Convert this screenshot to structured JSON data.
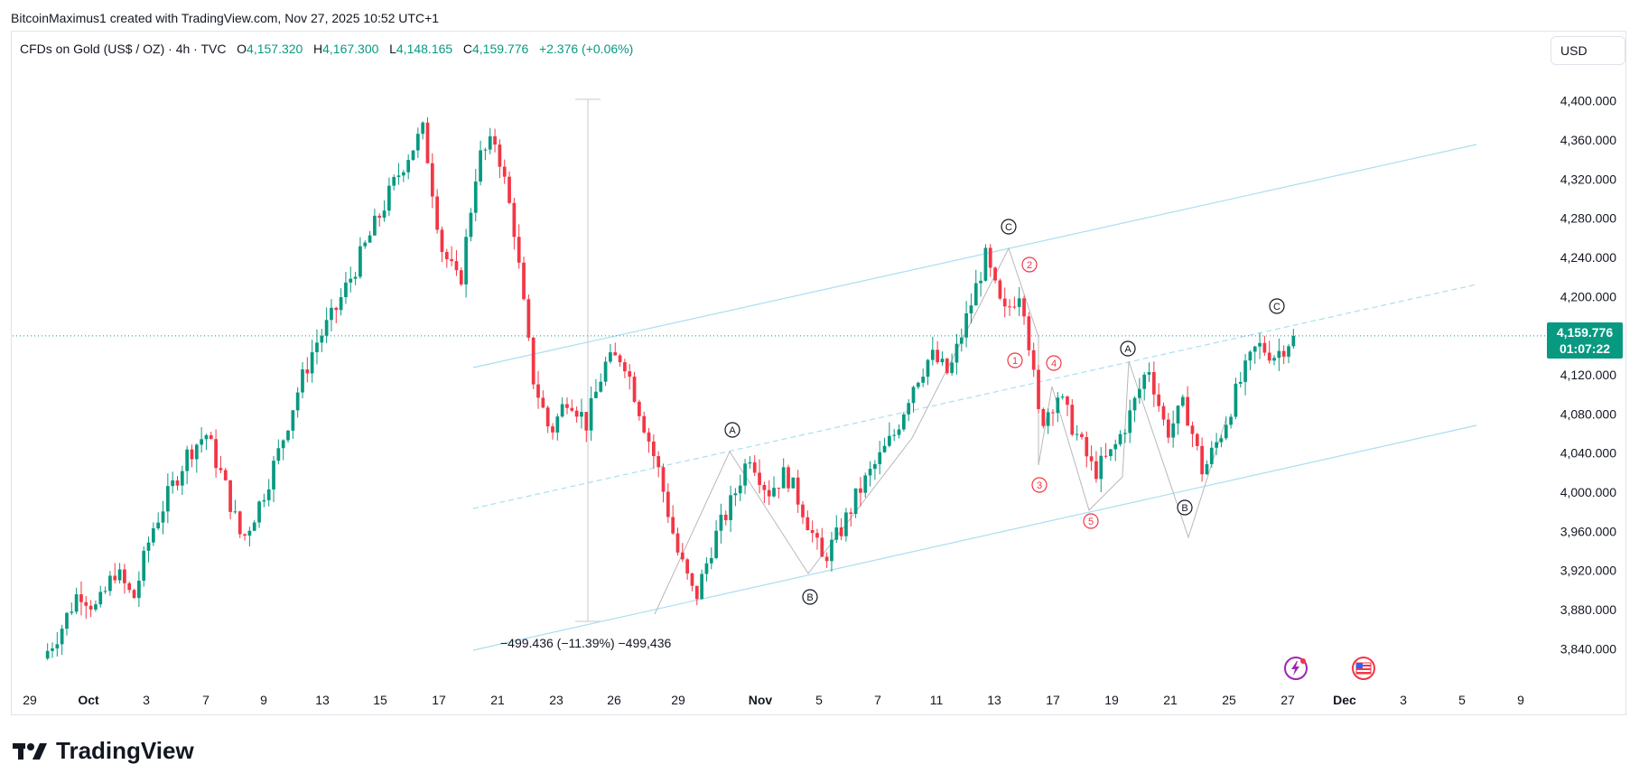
{
  "credit": "BitcoinMaximus1 created with TradingView.com, Nov 27, 2025 10:52 UTC+1",
  "legend": {
    "symbol": "CFDs on Gold (US$ / OZ) · 4h · TVC",
    "o_label": "O",
    "o_value": "4,157.320",
    "h_label": "H",
    "h_value": "4,167.300",
    "l_label": "L",
    "l_value": "4,148.165",
    "c_label": "C",
    "c_value": "4,159.776",
    "change": "+2.376 (+0.06%)"
  },
  "currency": "USD",
  "last_price": "4,159.776",
  "countdown": "01:07:22",
  "measure_text": "−499.436 (−11.39%) −499,436",
  "footer_brand": "TradingView",
  "colors": {
    "up": "#089981",
    "down": "#f23645",
    "channel": "#a8dff0",
    "wave": "#b8b8b8"
  },
  "icons": [
    "lightning-icon",
    "us-flag-icon"
  ],
  "chart_data": {
    "type": "candlestick",
    "timeframe": "4h",
    "y_ticks": [
      "4,400.000",
      "4,360.000",
      "4,320.000",
      "4,280.000",
      "4,240.000",
      "4,200.000",
      "4,160.000",
      "4,120.000",
      "4,080.000",
      "4,040.000",
      "4,000.000",
      "3,960.000",
      "3,920.000",
      "3,880.000",
      "3,840.000"
    ],
    "ylim": [
      3820,
      4420
    ],
    "x_ticks": [
      {
        "label": "29",
        "bold": false
      },
      {
        "label": "Oct",
        "bold": true
      },
      {
        "label": "3",
        "bold": false
      },
      {
        "label": "7",
        "bold": false
      },
      {
        "label": "9",
        "bold": false
      },
      {
        "label": "13",
        "bold": false
      },
      {
        "label": "15",
        "bold": false
      },
      {
        "label": "17",
        "bold": false
      },
      {
        "label": "21",
        "bold": false
      },
      {
        "label": "23",
        "bold": false
      },
      {
        "label": "26",
        "bold": false
      },
      {
        "label": "29",
        "bold": false
      },
      {
        "label": "Nov",
        "bold": true
      },
      {
        "label": "5",
        "bold": false
      },
      {
        "label": "7",
        "bold": false
      },
      {
        "label": "11",
        "bold": false
      },
      {
        "label": "13",
        "bold": false
      },
      {
        "label": "17",
        "bold": false
      },
      {
        "label": "19",
        "bold": false
      },
      {
        "label": "21",
        "bold": false
      },
      {
        "label": "25",
        "bold": false
      },
      {
        "label": "27",
        "bold": false
      },
      {
        "label": "Dec",
        "bold": true
      },
      {
        "label": "3",
        "bold": false
      },
      {
        "label": "5",
        "bold": false
      },
      {
        "label": "9",
        "bold": false
      }
    ],
    "price_path": [
      3830,
      3860,
      3900,
      3880,
      3920,
      3890,
      3960,
      4000,
      4040,
      4060,
      4010,
      3950,
      3990,
      4040,
      4100,
      4150,
      4180,
      4220,
      4260,
      4300,
      4340,
      4370,
      4250,
      4210,
      4340,
      4360,
      4270,
      4120,
      4060,
      4100,
      4070,
      4130,
      4140,
      4080,
      4020,
      3940,
      3890,
      3950,
      3990,
      4040,
      4000,
      4020,
      3980,
      3930,
      3960,
      4000,
      4030,
      4060,
      4110,
      4140,
      4120,
      4180,
      4240,
      4180,
      4210,
      4070,
      4100,
      4060,
      4020,
      4040,
      4080,
      4130,
      4060,
      4090,
      4020,
      4060,
      4110,
      4150,
      4140,
      4160
    ],
    "last_value": 4159.776,
    "elliott_labels": [
      {
        "text": "A",
        "color": "black"
      },
      {
        "text": "B",
        "color": "black"
      },
      {
        "text": "C",
        "color": "black"
      },
      {
        "text": "1",
        "color": "red"
      },
      {
        "text": "2",
        "color": "red"
      },
      {
        "text": "3",
        "color": "red"
      },
      {
        "text": "4",
        "color": "red"
      },
      {
        "text": "5",
        "color": "red"
      },
      {
        "text": "A",
        "color": "black"
      },
      {
        "text": "B",
        "color": "black"
      },
      {
        "text": "C",
        "color": "black"
      }
    ],
    "measure_change": -499.436
  }
}
